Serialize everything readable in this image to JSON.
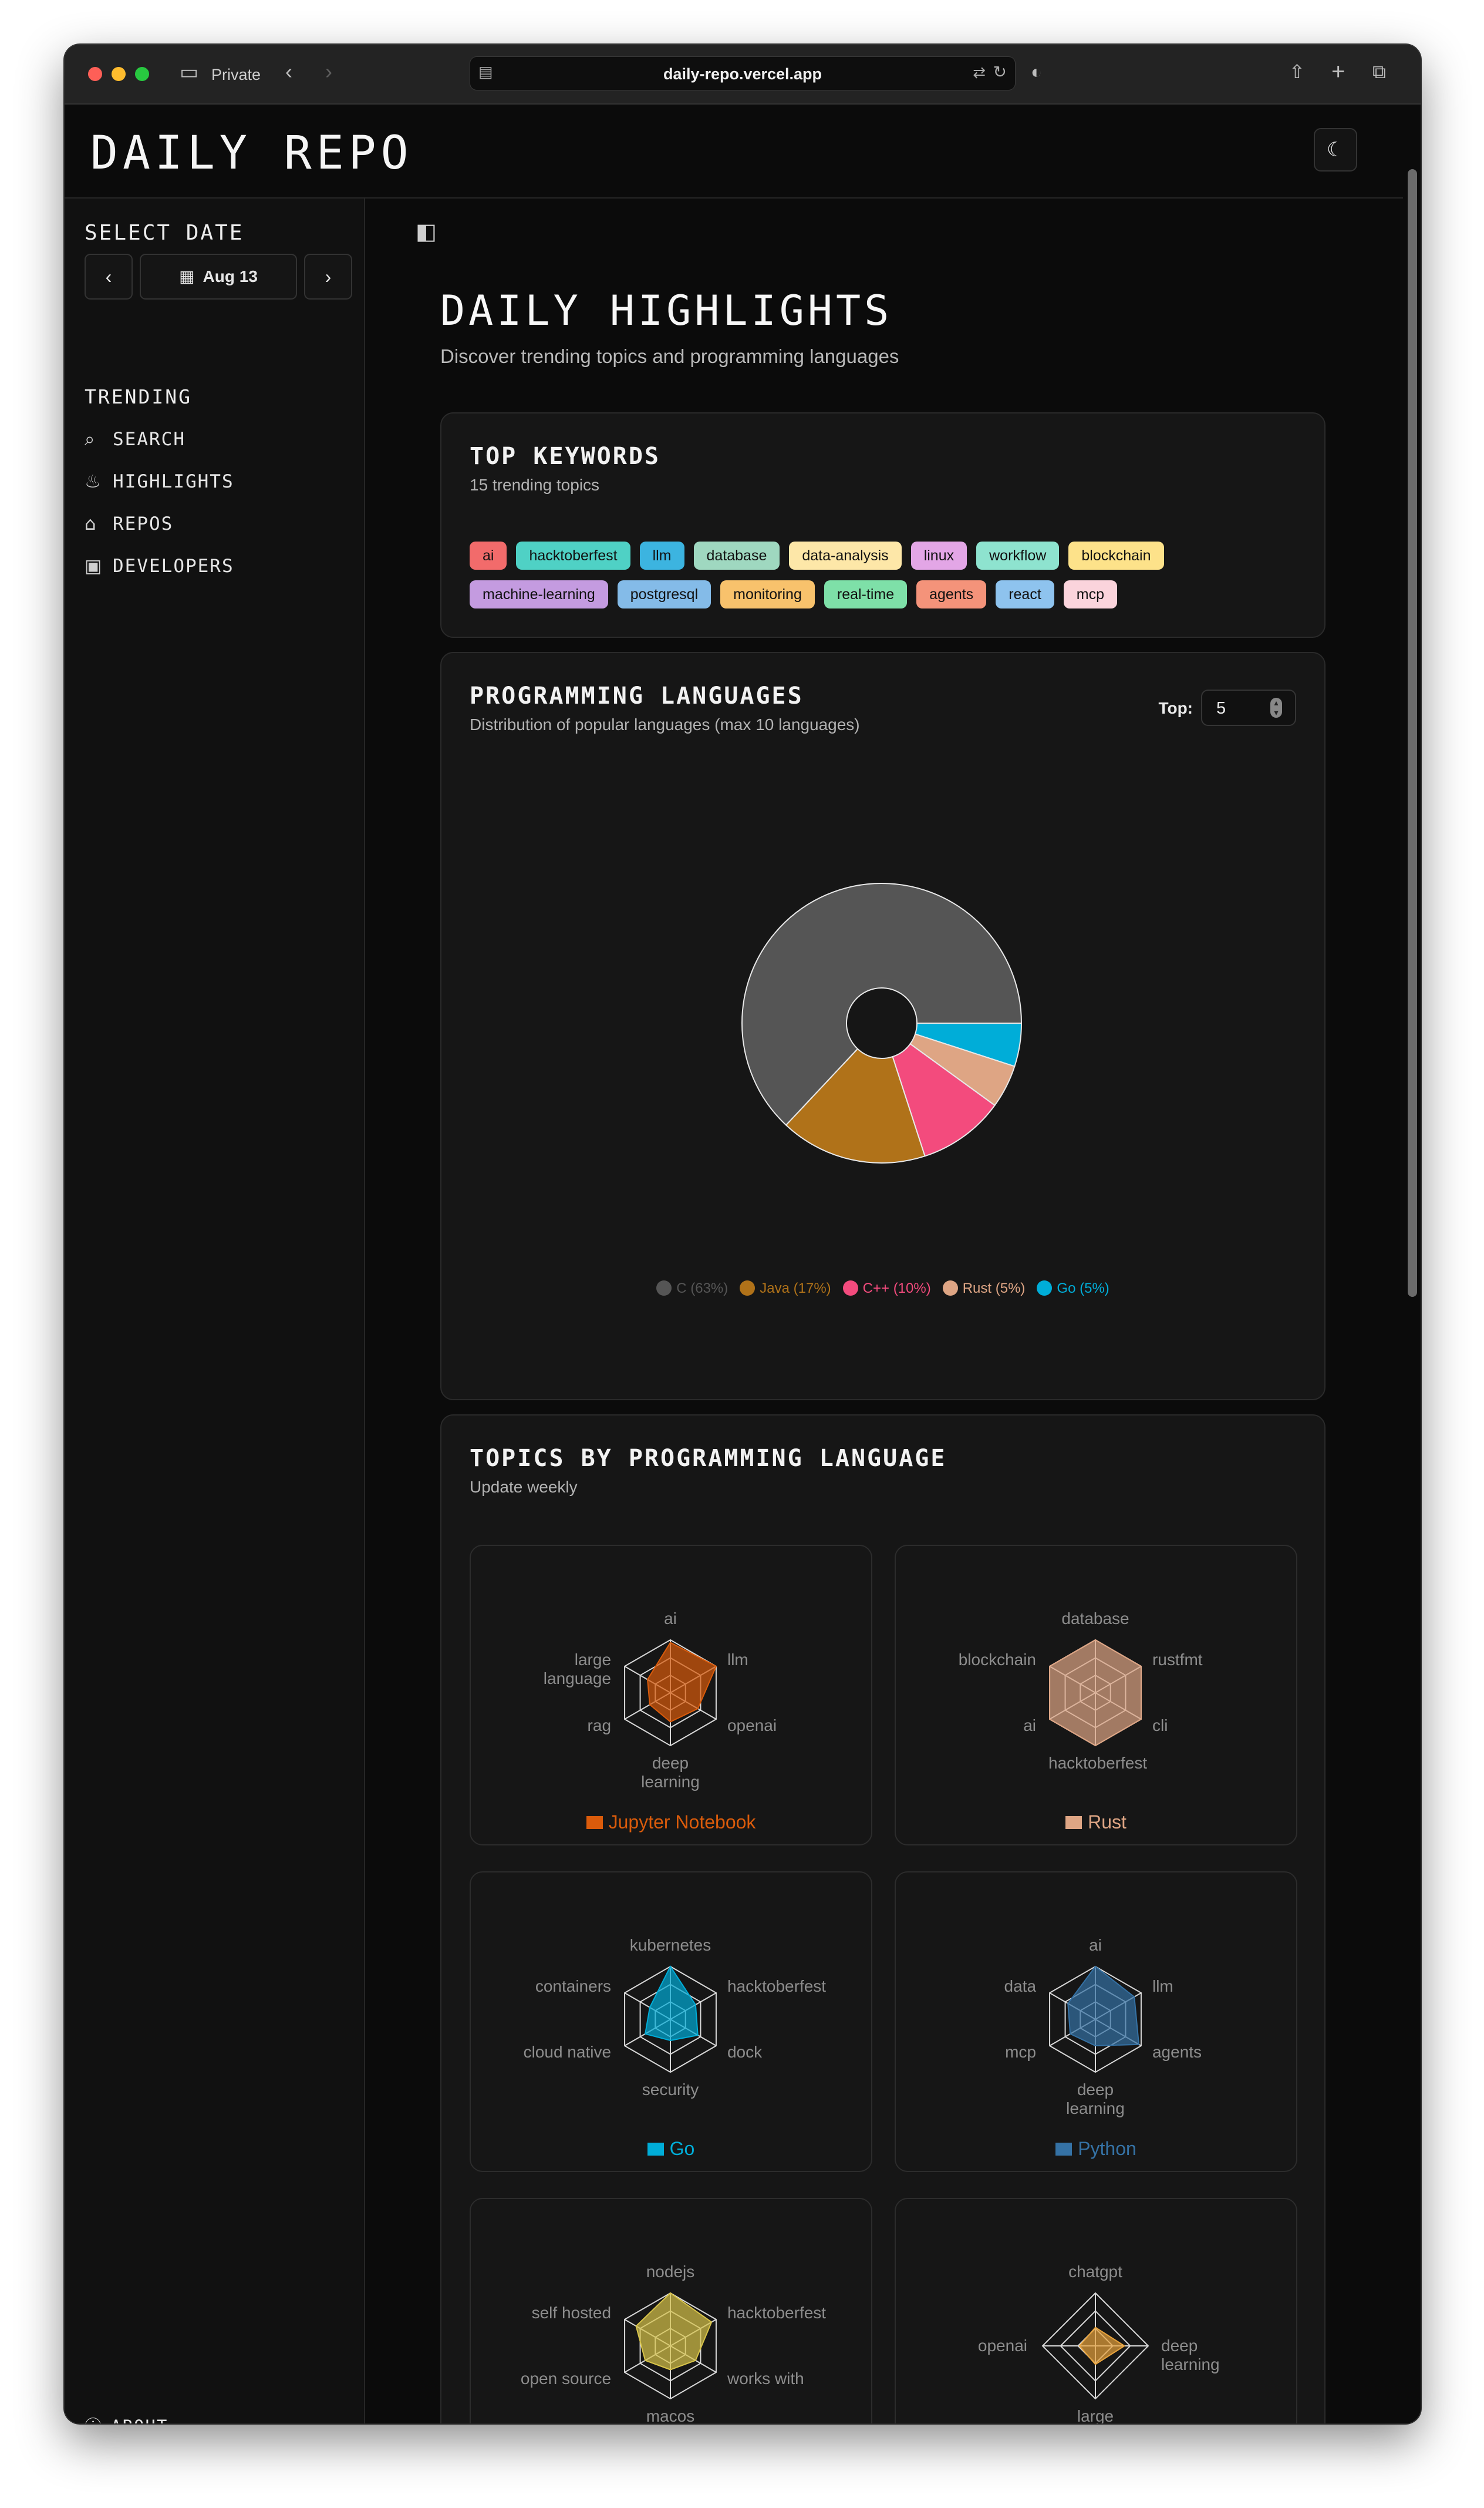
{
  "browser": {
    "private_label": "Private",
    "url": "daily-repo.vercel.app"
  },
  "app": {
    "logo": "DAILY REPO"
  },
  "sidebar": {
    "select_date": "SELECT DATE",
    "date": "Aug 13",
    "section": "TRENDING",
    "items": [
      {
        "label": "SEARCH",
        "icon": "search-icon"
      },
      {
        "label": "HIGHLIGHTS",
        "icon": "flame-icon"
      },
      {
        "label": "REPOS",
        "icon": "home-icon"
      },
      {
        "label": "DEVELOPERS",
        "icon": "user-square-icon"
      }
    ],
    "about": "ABOUT"
  },
  "main": {
    "title": "DAILY HIGHLIGHTS",
    "subtitle": "Discover trending topics and programming languages"
  },
  "keywords": {
    "title": "TOP KEYWORDS",
    "subtitle": "15 trending topics",
    "chips": [
      {
        "label": "ai",
        "color": "#f26b6b"
      },
      {
        "label": "hacktoberfest",
        "color": "#4fd1c5"
      },
      {
        "label": "llm",
        "color": "#3cb4e0"
      },
      {
        "label": "database",
        "color": "#9fd8c0"
      },
      {
        "label": "data-analysis",
        "color": "#fde7a8"
      },
      {
        "label": "linux",
        "color": "#e3a6e6"
      },
      {
        "label": "workflow",
        "color": "#8ee3cf"
      },
      {
        "label": "blockchain",
        "color": "#fde28a"
      },
      {
        "label": "machine-learning",
        "color": "#c49be0"
      },
      {
        "label": "postgresql",
        "color": "#84bbe8"
      },
      {
        "label": "monitoring",
        "color": "#f8c26c"
      },
      {
        "label": "real-time",
        "color": "#7ee0a8"
      },
      {
        "label": "agents",
        "color": "#f4937a"
      },
      {
        "label": "react",
        "color": "#8ec3ee"
      },
      {
        "label": "mcp",
        "color": "#fbd4dc"
      }
    ]
  },
  "languages": {
    "title": "PROGRAMMING LANGUAGES",
    "subtitle": "Distribution of popular languages (max 10 languages)",
    "top_label": "Top:",
    "top_value": "5"
  },
  "chart_data": {
    "type": "pie",
    "categories": [
      "C",
      "Java",
      "C++",
      "Rust",
      "Go"
    ],
    "values": [
      63,
      17,
      10,
      5,
      5
    ],
    "legend_labels": [
      "C (63%)",
      "Java (17%)",
      "C++ (10%)",
      "Rust (5%)",
      "Go (5%)"
    ],
    "colors": [
      "#555555",
      "#b07219",
      "#f34b7d",
      "#dea584",
      "#00add8"
    ],
    "legend_position": "bottom"
  },
  "topics": {
    "title": "TOPICS BY PROGRAMMING LANGUAGE",
    "subtitle": "Update weekly",
    "radars": [
      {
        "name": "Jupyter Notebook",
        "color": "#da5b0b",
        "axes": [
          "ai",
          "llm",
          "openai",
          "deep learning",
          "rag",
          "large language"
        ],
        "values": [
          0.95,
          1.0,
          0.6,
          0.55,
          0.45,
          0.5
        ]
      },
      {
        "name": "Rust",
        "color": "#dea584",
        "axes": [
          "database",
          "rustfmt",
          "cli",
          "hacktoberfest",
          "ai",
          "blockchain"
        ],
        "values": [
          1.0,
          1.0,
          1.0,
          1.0,
          1.0,
          1.0
        ]
      },
      {
        "name": "Go",
        "color": "#00add8",
        "axes": [
          "kubernetes",
          "hacktoberfest",
          "dock",
          "security",
          "cloud native",
          "containers"
        ],
        "values": [
          1.0,
          0.55,
          0.6,
          0.4,
          0.55,
          0.45
        ]
      },
      {
        "name": "Python",
        "color": "#3572a5",
        "axes": [
          "ai",
          "llm",
          "agents",
          "deep learning",
          "mcp",
          "data"
        ],
        "values": [
          1.0,
          0.85,
          0.95,
          0.5,
          0.55,
          0.6
        ]
      },
      {
        "name": "",
        "color": "#d8c44a",
        "axes": [
          "nodejs",
          "hacktoberfest",
          "works with",
          "macos",
          "open source",
          "self hosted"
        ],
        "values": [
          1.0,
          0.9,
          0.55,
          0.45,
          0.55,
          0.75
        ]
      },
      {
        "name": "",
        "color": "#e8a33c",
        "axes": [
          "chatgpt",
          "deep learning",
          "large language",
          "openai"
        ],
        "values": [
          0.35,
          0.55,
          0.35,
          0.3
        ]
      }
    ]
  }
}
